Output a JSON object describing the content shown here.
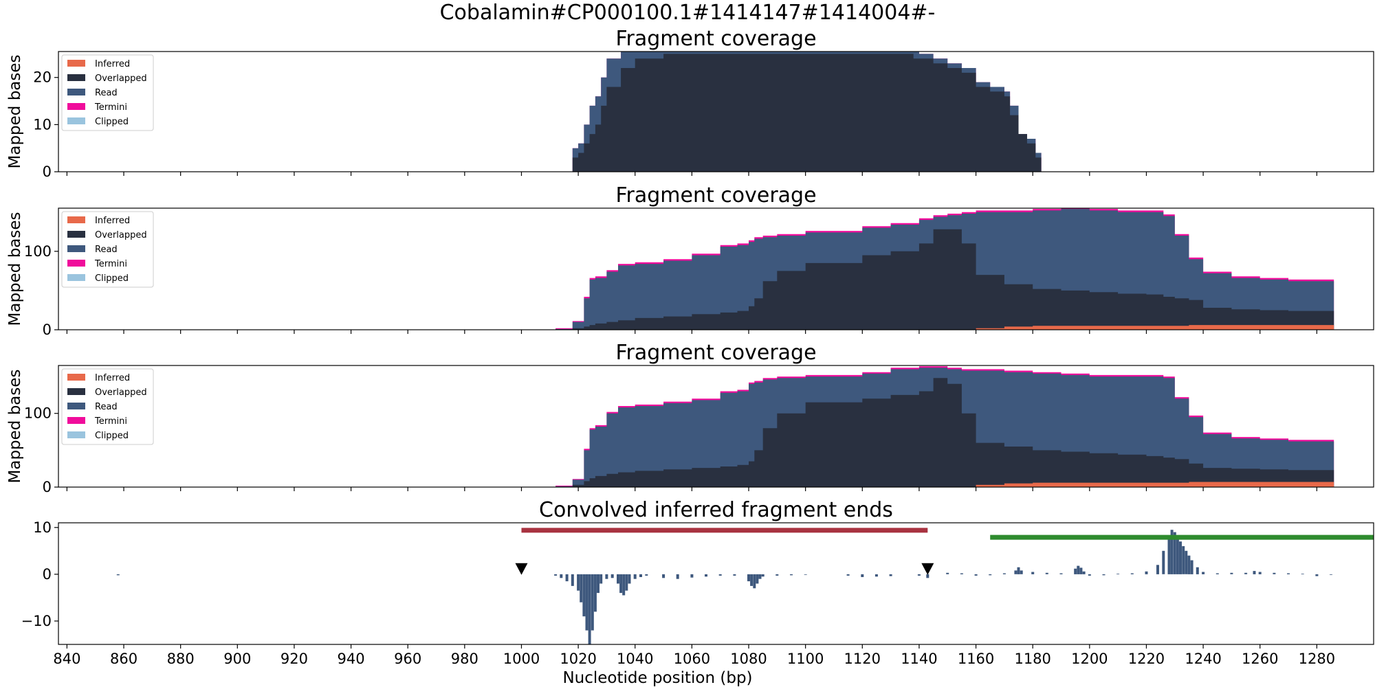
{
  "figure": {
    "suptitle": "Cobalamin#CP000100.1#1414147#1414004#-"
  },
  "colors": {
    "Inferred": "#e8694a",
    "Overlapped": "#293040",
    "Read": "#3e587d",
    "Termini": "#f00c9b",
    "Clipped": "#9ac4de",
    "red_bar": "#a83240",
    "green_bar": "#2e8b2e",
    "marker": "#000000"
  },
  "chart_data": [
    {
      "type": "area",
      "title": "Fragment coverage",
      "ylabel": "Mapped bases",
      "xlabel": "",
      "xlim": [
        837,
        1300
      ],
      "ylim": [
        0,
        25.5
      ],
      "yticks": [
        0,
        10,
        20
      ],
      "xticks": [
        840,
        860,
        880,
        900,
        920,
        940,
        960,
        980,
        1000,
        1020,
        1040,
        1060,
        1080,
        1100,
        1120,
        1140,
        1160,
        1180,
        1200,
        1220,
        1240,
        1260,
        1280
      ],
      "show_xtick_labels": false,
      "legend": {
        "placement": "top-left",
        "entries": [
          "Inferred",
          "Overlapped",
          "Read",
          "Termini",
          "Clipped"
        ]
      },
      "x": [
        1018,
        1020,
        1022,
        1024,
        1026,
        1028,
        1030,
        1035,
        1040,
        1050,
        1060,
        1080,
        1100,
        1120,
        1130,
        1138,
        1140,
        1145,
        1150,
        1155,
        1160,
        1165,
        1170,
        1172,
        1175,
        1178,
        1181,
        1183
      ],
      "series": [
        {
          "name": "Inferred",
          "values": [
            0,
            0,
            0,
            0,
            0,
            0,
            0,
            0,
            0,
            0,
            0,
            0,
            0,
            0,
            0,
            0,
            0,
            0,
            0,
            0,
            0,
            0,
            0,
            0,
            0,
            0,
            0,
            0
          ]
        },
        {
          "name": "Overlapped",
          "values": [
            3,
            4,
            6,
            8,
            10,
            14,
            18,
            22,
            24,
            25,
            25,
            25,
            25,
            25,
            25,
            24,
            24,
            23,
            22,
            21,
            18,
            17,
            16,
            12,
            8,
            6,
            3,
            0
          ]
        },
        {
          "name": "Read",
          "values": [
            5,
            6,
            10,
            14,
            16,
            20,
            24,
            26,
            26,
            26,
            26,
            26,
            26,
            26,
            26,
            26,
            25,
            24,
            23,
            22,
            19,
            18,
            17,
            14,
            8,
            7,
            4,
            0
          ]
        },
        {
          "name": "Termini",
          "values": [
            5,
            6,
            10,
            14,
            16,
            20,
            24,
            26,
            26,
            26,
            26,
            26,
            26,
            26,
            26,
            26,
            25,
            24,
            23,
            22,
            19,
            18,
            17,
            14,
            8,
            7,
            4,
            0
          ]
        }
      ]
    },
    {
      "type": "area",
      "title": "Fragment coverage",
      "ylabel": "Mapped bases",
      "xlabel": "",
      "xlim": [
        837,
        1300
      ],
      "ylim": [
        0,
        155
      ],
      "yticks": [
        0,
        100
      ],
      "xticks": [
        840,
        860,
        880,
        900,
        920,
        940,
        960,
        980,
        1000,
        1020,
        1040,
        1060,
        1080,
        1100,
        1120,
        1140,
        1160,
        1180,
        1200,
        1220,
        1240,
        1260,
        1280
      ],
      "show_xtick_labels": false,
      "legend": {
        "placement": "top-left",
        "entries": [
          "Inferred",
          "Overlapped",
          "Read",
          "Termini",
          "Clipped"
        ]
      },
      "x": [
        1012,
        1018,
        1022,
        1024,
        1026,
        1030,
        1034,
        1040,
        1050,
        1060,
        1070,
        1076,
        1080,
        1082,
        1085,
        1090,
        1100,
        1120,
        1130,
        1140,
        1145,
        1150,
        1155,
        1160,
        1170,
        1180,
        1190,
        1200,
        1210,
        1220,
        1226,
        1230,
        1235,
        1240,
        1250,
        1260,
        1270,
        1286
      ],
      "series": [
        {
          "name": "Inferred",
          "values": [
            0,
            0,
            0,
            0,
            0,
            0,
            0,
            0,
            0,
            0,
            0,
            0,
            0,
            0,
            0,
            0,
            0,
            0,
            0,
            0,
            0,
            0,
            0,
            2,
            4,
            5,
            5,
            5,
            5,
            5,
            5,
            5,
            6,
            6,
            6,
            6,
            6,
            7
          ]
        },
        {
          "name": "Overlapped",
          "values": [
            0,
            2,
            4,
            6,
            8,
            10,
            12,
            15,
            17,
            20,
            22,
            24,
            30,
            40,
            62,
            75,
            85,
            95,
            100,
            110,
            128,
            128,
            110,
            70,
            58,
            52,
            50,
            48,
            46,
            45,
            42,
            40,
            38,
            28,
            26,
            25,
            24,
            24
          ]
        },
        {
          "name": "Read",
          "values": [
            1,
            10,
            40,
            64,
            66,
            74,
            82,
            84,
            88,
            95,
            106,
            108,
            112,
            116,
            118,
            120,
            124,
            130,
            134,
            140,
            144,
            146,
            148,
            150,
            150,
            152,
            154,
            152,
            150,
            150,
            145,
            120,
            90,
            72,
            66,
            64,
            62,
            60
          ]
        },
        {
          "name": "Termini",
          "values": [
            2,
            11,
            42,
            66,
            68,
            76,
            84,
            86,
            90,
            97,
            108,
            110,
            114,
            118,
            120,
            122,
            126,
            132,
            136,
            142,
            146,
            148,
            150,
            152,
            152,
            154,
            156,
            154,
            152,
            152,
            147,
            122,
            92,
            74,
            68,
            66,
            64,
            62
          ]
        }
      ]
    },
    {
      "type": "area",
      "title": "Fragment coverage",
      "ylabel": "Mapped bases",
      "xlabel": "",
      "xlim": [
        837,
        1300
      ],
      "ylim": [
        0,
        165
      ],
      "yticks": [
        0,
        100
      ],
      "xticks": [
        840,
        860,
        880,
        900,
        920,
        940,
        960,
        980,
        1000,
        1020,
        1040,
        1060,
        1080,
        1100,
        1120,
        1140,
        1160,
        1180,
        1200,
        1220,
        1240,
        1260,
        1280
      ],
      "show_xtick_labels": false,
      "legend": {
        "placement": "top-left",
        "entries": [
          "Inferred",
          "Overlapped",
          "Read",
          "Termini",
          "Clipped"
        ]
      },
      "x": [
        1012,
        1018,
        1022,
        1024,
        1026,
        1030,
        1034,
        1040,
        1050,
        1060,
        1070,
        1076,
        1080,
        1082,
        1085,
        1090,
        1100,
        1120,
        1130,
        1140,
        1145,
        1150,
        1155,
        1160,
        1170,
        1180,
        1190,
        1200,
        1210,
        1220,
        1226,
        1230,
        1235,
        1240,
        1250,
        1260,
        1270,
        1286
      ],
      "series": [
        {
          "name": "Inferred",
          "values": [
            0,
            0,
            0,
            0,
            0,
            0,
            0,
            0,
            0,
            0,
            0,
            0,
            0,
            0,
            0,
            0,
            0,
            0,
            0,
            0,
            0,
            0,
            0,
            3,
            5,
            6,
            6,
            6,
            6,
            6,
            6,
            6,
            7,
            7,
            7,
            7,
            7,
            8
          ]
        },
        {
          "name": "Overlapped",
          "values": [
            0,
            3,
            8,
            12,
            15,
            18,
            20,
            22,
            24,
            26,
            28,
            30,
            35,
            50,
            80,
            100,
            115,
            120,
            125,
            130,
            148,
            140,
            100,
            60,
            55,
            50,
            48,
            46,
            44,
            42,
            40,
            38,
            32,
            26,
            25,
            24,
            23,
            23
          ]
        },
        {
          "name": "Read",
          "values": [
            1,
            10,
            50,
            78,
            82,
            100,
            108,
            110,
            114,
            118,
            128,
            130,
            140,
            142,
            146,
            148,
            150,
            154,
            160,
            162,
            162,
            160,
            158,
            158,
            156,
            154,
            152,
            150,
            150,
            150,
            148,
            120,
            95,
            72,
            66,
            64,
            62,
            60
          ]
        },
        {
          "name": "Termini",
          "values": [
            2,
            11,
            52,
            80,
            84,
            102,
            110,
            112,
            116,
            120,
            130,
            132,
            142,
            144,
            148,
            150,
            152,
            156,
            162,
            164,
            164,
            162,
            160,
            160,
            158,
            156,
            154,
            152,
            152,
            152,
            150,
            122,
            97,
            74,
            68,
            66,
            64,
            62
          ]
        }
      ]
    },
    {
      "type": "bar",
      "title": "Convolved inferred fragment ends",
      "xlabel": "Nucleotide position (bp)",
      "ylabel": "",
      "xlim": [
        837,
        1300
      ],
      "ylim": [
        -15,
        11
      ],
      "yticks": [
        -10,
        0,
        10
      ],
      "xticks": [
        840,
        860,
        880,
        900,
        920,
        940,
        960,
        980,
        1000,
        1020,
        1040,
        1060,
        1080,
        1100,
        1120,
        1140,
        1160,
        1180,
        1200,
        1220,
        1240,
        1260,
        1280
      ],
      "show_xtick_labels": true,
      "x": [
        858,
        1012,
        1014,
        1016,
        1018,
        1020,
        1021,
        1022,
        1023,
        1024,
        1025,
        1026,
        1027,
        1028,
        1030,
        1032,
        1034,
        1035,
        1036,
        1037,
        1038,
        1040,
        1042,
        1044,
        1050,
        1055,
        1060,
        1065,
        1070,
        1075,
        1080,
        1081,
        1082,
        1083,
        1084,
        1085,
        1090,
        1095,
        1100,
        1115,
        1120,
        1125,
        1130,
        1140,
        1143,
        1150,
        1155,
        1160,
        1165,
        1170,
        1174,
        1175,
        1176,
        1180,
        1185,
        1190,
        1195,
        1196,
        1197,
        1198,
        1200,
        1205,
        1210,
        1215,
        1220,
        1224,
        1226,
        1228,
        1229,
        1230,
        1231,
        1232,
        1233,
        1234,
        1235,
        1236,
        1238,
        1240,
        1245,
        1250,
        1255,
        1258,
        1260,
        1265,
        1270,
        1275,
        1280,
        1285
      ],
      "values": [
        -0.2,
        -0.3,
        -0.8,
        -1.5,
        -2.5,
        -3.5,
        -6,
        -9,
        -12,
        -15,
        -12,
        -8,
        -4,
        -2,
        -1,
        -0.8,
        -2,
        -4,
        -4.5,
        -3.5,
        -2,
        -1,
        -0.6,
        -0.3,
        -0.8,
        -1,
        -0.7,
        -0.5,
        -0.3,
        -0.3,
        -1.5,
        -2.5,
        -3,
        -2,
        -1,
        -0.5,
        -0.3,
        -0.2,
        -0.1,
        -0.3,
        -0.6,
        -0.5,
        -0.4,
        -0.3,
        -0.8,
        0.3,
        0.2,
        -0.3,
        -0.2,
        0.2,
        0.8,
        1.5,
        0.8,
        0.5,
        0.3,
        0.2,
        1.2,
        1.8,
        1.4,
        0.6,
        -0.3,
        -0.2,
        0.1,
        0.2,
        0.6,
        2,
        5,
        8,
        9.5,
        9,
        8,
        7,
        6,
        5,
        4,
        3,
        1.5,
        0.5,
        0.2,
        0.3,
        0.3,
        0.7,
        0.5,
        0.3,
        0.2,
        0.1,
        -0.4,
        -0.1
      ],
      "range_bars": [
        {
          "color_key": "red_bar",
          "x0": 1000,
          "x1": 1143,
          "y": 9.4
        },
        {
          "color_key": "green_bar",
          "x0": 1165,
          "x1": 1300,
          "y": 7.9
        }
      ],
      "markers": [
        {
          "x": 1000,
          "y": 1.2
        },
        {
          "x": 1143,
          "y": 1.2
        }
      ]
    }
  ]
}
